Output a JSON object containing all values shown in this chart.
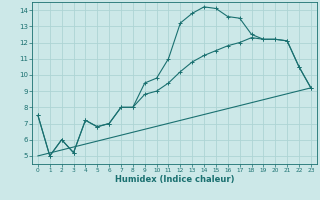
{
  "xlabel": "Humidex (Indice chaleur)",
  "ylabel": "",
  "xlim": [
    -0.5,
    23.5
  ],
  "ylim": [
    4.5,
    14.5
  ],
  "xticks": [
    0,
    1,
    2,
    3,
    4,
    5,
    6,
    7,
    8,
    9,
    10,
    11,
    12,
    13,
    14,
    15,
    16,
    17,
    18,
    19,
    20,
    21,
    22,
    23
  ],
  "yticks": [
    5,
    6,
    7,
    8,
    9,
    10,
    11,
    12,
    13,
    14
  ],
  "bg_color": "#cce8e8",
  "grid_color": "#aed4d4",
  "line_color": "#1a7070",
  "line1_x": [
    0,
    1,
    2,
    3,
    4,
    5,
    6,
    7,
    8,
    9,
    10,
    11,
    12,
    13,
    14,
    15,
    16,
    17,
    18,
    19,
    20,
    21,
    22,
    23
  ],
  "line1_y": [
    7.5,
    5.0,
    6.0,
    5.2,
    7.2,
    6.8,
    7.0,
    8.0,
    8.0,
    9.5,
    9.8,
    11.0,
    13.2,
    13.8,
    14.2,
    14.1,
    13.6,
    13.5,
    12.5,
    12.2,
    12.2,
    12.1,
    10.5,
    9.2
  ],
  "line2_x": [
    0,
    1,
    2,
    3,
    4,
    5,
    6,
    7,
    8,
    9,
    10,
    11,
    12,
    13,
    14,
    15,
    16,
    17,
    18,
    19,
    20,
    21,
    22,
    23
  ],
  "line2_y": [
    7.5,
    5.0,
    6.0,
    5.2,
    7.2,
    6.8,
    7.0,
    8.0,
    8.0,
    8.8,
    9.0,
    9.5,
    10.2,
    10.8,
    11.2,
    11.5,
    11.8,
    12.0,
    12.3,
    12.2,
    12.2,
    12.1,
    10.5,
    9.2
  ],
  "line3_x": [
    0,
    23
  ],
  "line3_y": [
    5.0,
    9.2
  ]
}
